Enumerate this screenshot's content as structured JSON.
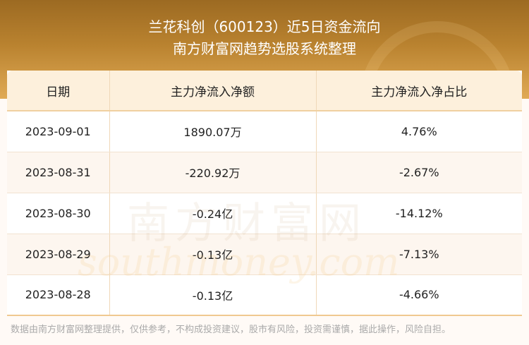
{
  "header": {
    "title": "兰花科创（600123）近5日资金流向",
    "subtitle": "南方财富网趋势选股系统整理"
  },
  "table": {
    "columns": [
      "日期",
      "主力净流入净额",
      "主力净流入净占比"
    ],
    "rows": [
      [
        "2023-09-01",
        "1890.07万",
        "4.76%"
      ],
      [
        "2023-08-31",
        "-220.92万",
        "-2.67%"
      ],
      [
        "2023-08-30",
        "-0.24亿",
        "-14.12%"
      ],
      [
        "2023-08-29",
        "-0.13亿",
        "-7.13%"
      ],
      [
        "2023-08-28",
        "-0.13亿",
        "-4.66%"
      ]
    ]
  },
  "watermark": {
    "cn": "南方财富网",
    "en": "southmoney.com"
  },
  "footer": "数据由南方财富网整理提供，仅供参考，不构成投资建议，股市有风险，投资需谨慎，据此操作，风险自担。"
}
